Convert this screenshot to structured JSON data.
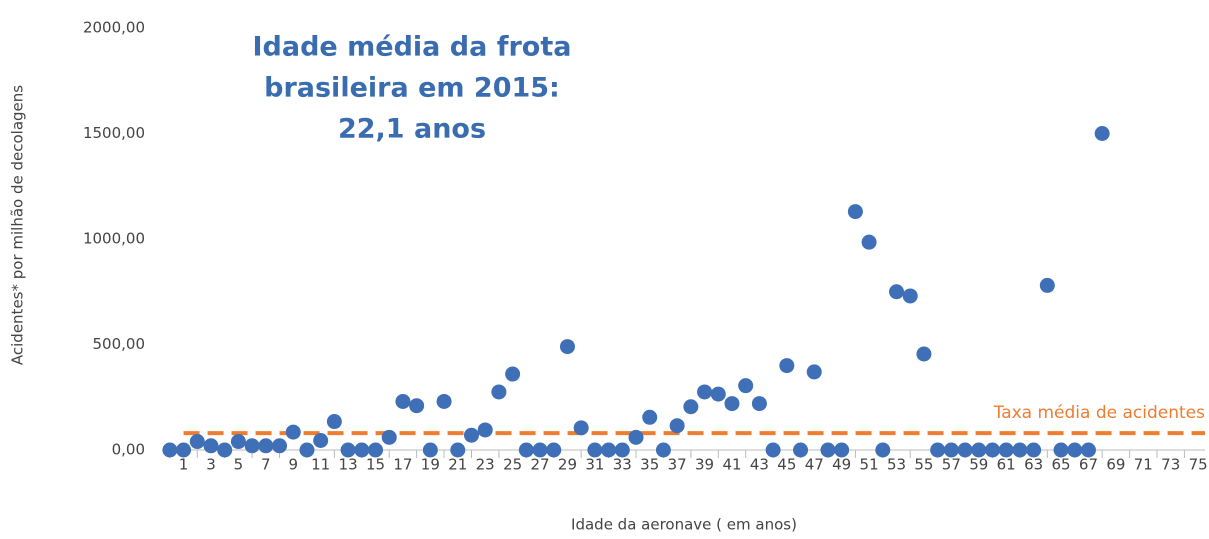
{
  "chart_data": {
    "type": "scatter",
    "title_lines": [
      "Idade média da frota",
      "brasileira em 2015:",
      "22,1 anos"
    ],
    "xlabel": "Idade da aeronave ( em anos)",
    "ylabel": "Acidentes* por milhão de decolagens",
    "series": [
      {
        "name": "Acidentes",
        "color": "#3f6fb7",
        "x": [
          0,
          1,
          2,
          3,
          4,
          5,
          6,
          7,
          8,
          9,
          10,
          11,
          12,
          13,
          14,
          15,
          16,
          17,
          18,
          19,
          20,
          21,
          22,
          23,
          24,
          25,
          26,
          27,
          28,
          29,
          30,
          31,
          32,
          33,
          34,
          35,
          36,
          37,
          38,
          39,
          40,
          41,
          42,
          43,
          44,
          45,
          46,
          47,
          48,
          49,
          50,
          51,
          52,
          53,
          54,
          55,
          56,
          57,
          58,
          59,
          60,
          61,
          62,
          63,
          64,
          65,
          66,
          67,
          68
        ],
        "values": [
          0,
          0,
          40,
          20,
          0,
          40,
          20,
          20,
          20,
          85,
          0,
          45,
          135,
          0,
          0,
          0,
          60,
          230,
          210,
          0,
          230,
          0,
          70,
          95,
          275,
          360,
          0,
          0,
          0,
          490,
          105,
          0,
          0,
          0,
          60,
          155,
          0,
          115,
          205,
          275,
          265,
          220,
          305,
          220,
          0,
          400,
          0,
          370,
          0,
          0,
          1130,
          985,
          0,
          750,
          730,
          455,
          0,
          0,
          0,
          0,
          0,
          0,
          0,
          0,
          780,
          0,
          0,
          0,
          1500
        ]
      }
    ],
    "average": {
      "name": "Taxa média de acidentes",
      "value": 80,
      "color": "#ed7d31"
    },
    "xlim": [
      -0.5,
      75.5
    ],
    "xticks": [
      1,
      3,
      5,
      7,
      9,
      11,
      13,
      15,
      17,
      19,
      21,
      23,
      25,
      27,
      29,
      31,
      33,
      35,
      37,
      39,
      41,
      43,
      45,
      47,
      49,
      51,
      53,
      55,
      57,
      59,
      61,
      63,
      65,
      67,
      69,
      71,
      73,
      75
    ],
    "ylim": [
      0,
      2000
    ],
    "yticks": [
      {
        "value": 0,
        "label": "0,00"
      },
      {
        "value": 500,
        "label": "500,00"
      },
      {
        "value": 1000,
        "label": "1000,00"
      },
      {
        "value": 1500,
        "label": "1500,00"
      },
      {
        "value": 2000,
        "label": "2000,00"
      }
    ]
  }
}
